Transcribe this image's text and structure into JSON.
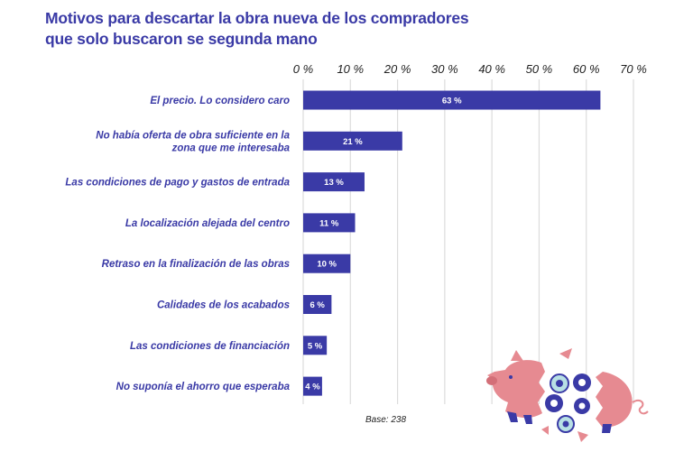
{
  "title_lines": [
    "Motivos para descartar la obra nueva de los compradores",
    "que solo buscaron se segunda mano"
  ],
  "footnote": "Base: 238",
  "colors": {
    "bar": "#3a3aa6",
    "bar_label": "#ffffff",
    "category_text": "#3a3aa6",
    "grid": "#dcdcdc",
    "axis_text": "#222222",
    "title": "#3a3aa6",
    "piggy": "#e68a91"
  },
  "illustration": "broken-piggy-bank-with-coins",
  "chart_data": {
    "type": "bar",
    "orientation": "horizontal",
    "title": "Motivos para descartar la obra nueva de los compradores que solo buscaron se segunda mano",
    "xlim": [
      0,
      70
    ],
    "ticks": [
      0,
      10,
      20,
      30,
      40,
      50,
      60,
      70
    ],
    "tick_labels": [
      "0 %",
      "10 %",
      "20 %",
      "30 %",
      "40 %",
      "50 %",
      "60 %",
      "70 %"
    ],
    "grid": true,
    "categories": [
      [
        "El precio. Lo considero caro"
      ],
      [
        "No había oferta de obra suficiente en la",
        "zona que me interesaba"
      ],
      [
        "Las condiciones de pago y gastos de entrada"
      ],
      [
        "La localización alejada del centro"
      ],
      [
        "Retraso en la finalización de las obras"
      ],
      [
        "Calidades de los acabados"
      ],
      [
        "Las condiciones de financiación"
      ],
      [
        "No suponía el ahorro que esperaba"
      ]
    ],
    "values": [
      63,
      21,
      13,
      11,
      10,
      6,
      5,
      4
    ],
    "value_labels": [
      "63 %",
      "21 %",
      "13 %",
      "11 %",
      "10 %",
      "6 %",
      "5 %",
      "4 %"
    ]
  }
}
